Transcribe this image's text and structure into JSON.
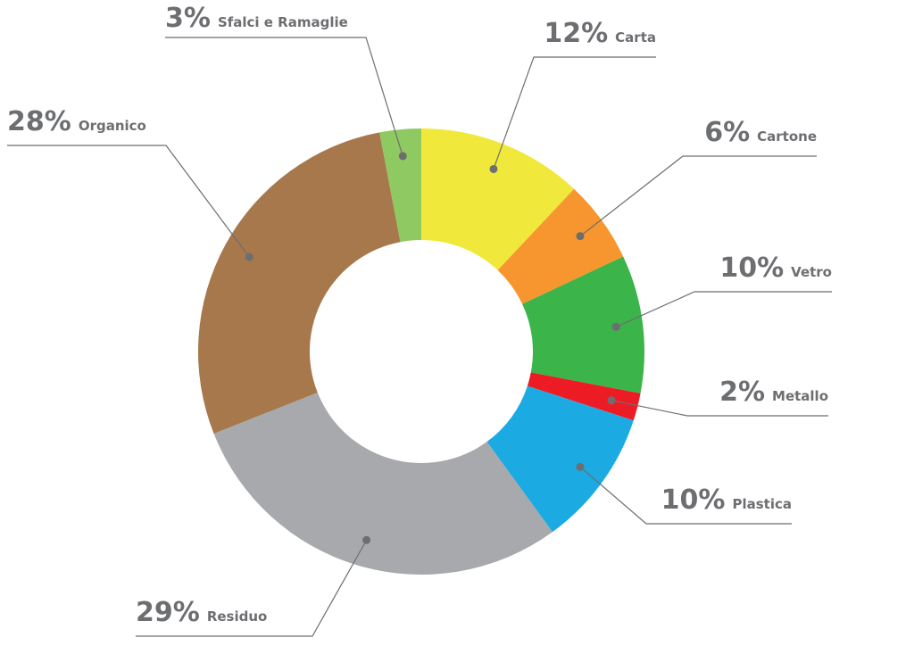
{
  "chart_data": {
    "type": "donut",
    "categories": [
      "Carta",
      "Cartone",
      "Vetro",
      "Metallo",
      "Plastica",
      "Residuo",
      "Organico",
      "Sfalci e Ramaglie"
    ],
    "values": [
      12,
      6,
      10,
      2,
      10,
      29,
      28,
      3
    ],
    "value_labels": [
      "12%",
      "6%",
      "10%",
      "2%",
      "10%",
      "29%",
      "28%",
      "3%"
    ],
    "colors": [
      "#f0e93b",
      "#f7962e",
      "#3bb44a",
      "#ed1c24",
      "#1caae2",
      "#a7a9ac",
      "#a6784b",
      "#8fc961"
    ]
  }
}
